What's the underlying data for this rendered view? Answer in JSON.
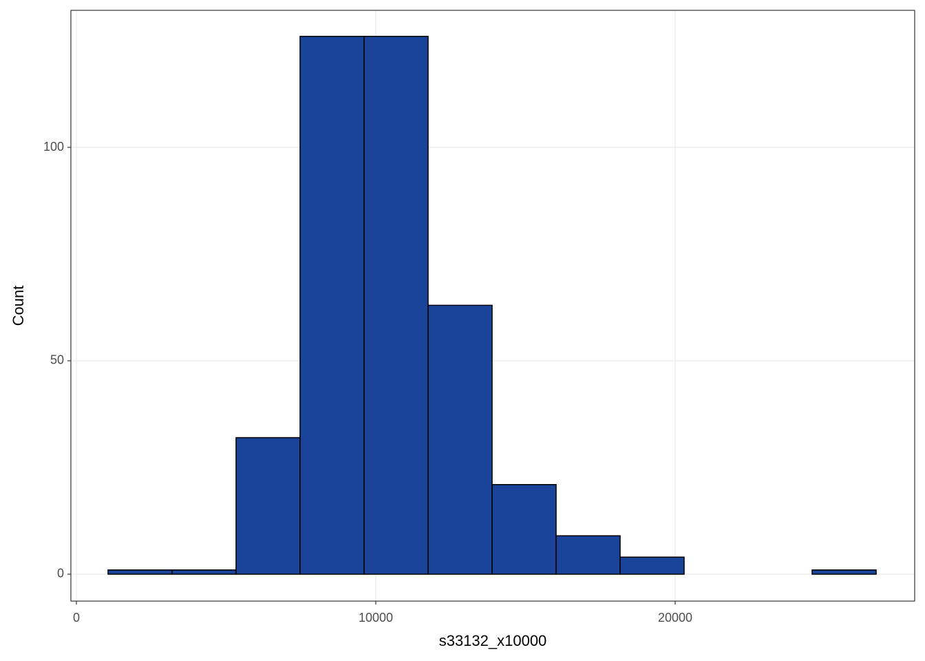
{
  "chart_data": {
    "type": "histogram",
    "x_label": "s33132_x10000",
    "y_label": "Count",
    "bins": [
      1057,
      3195,
      5333,
      7471,
      9609,
      11747,
      13885,
      16023,
      18161,
      20299,
      22437,
      24575,
      26713
    ],
    "counts": [
      1,
      1,
      32,
      126,
      126,
      63,
      21,
      9,
      4,
      0,
      0,
      1
    ],
    "color": "#1a4499",
    "edge_color": "#000000",
    "xlim": [
      -184,
      28000
    ],
    "ylim": [
      -6.3,
      132.1
    ],
    "xticks": [
      0,
      10000,
      20000
    ],
    "yticks": [
      0,
      50,
      100
    ],
    "grid": true
  }
}
